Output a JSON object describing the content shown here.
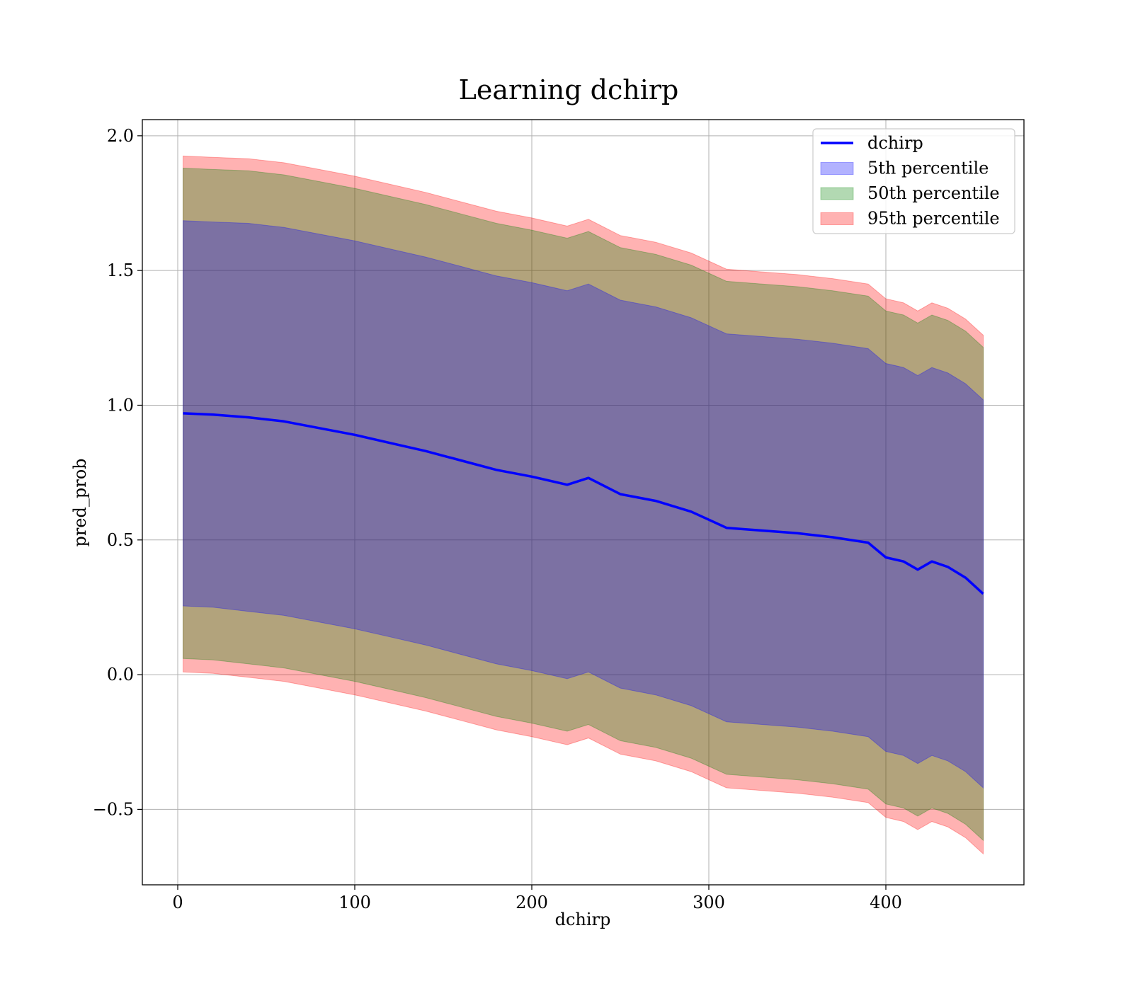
{
  "chart_data": {
    "type": "area",
    "title": "Learning dchirp",
    "xlabel": "dchirp",
    "ylabel": "pred_prob",
    "xlim": [
      -20,
      478
    ],
    "ylim": [
      -0.78,
      2.06
    ],
    "x_ticks": [
      0,
      100,
      200,
      300,
      400
    ],
    "y_ticks": [
      -0.5,
      0.0,
      0.5,
      1.0,
      1.5,
      2.0
    ],
    "x_tick_labels": [
      "0",
      "100",
      "200",
      "300",
      "400"
    ],
    "y_tick_labels": [
      "−0.5",
      "0.0",
      "0.5",
      "1.0",
      "1.5",
      "2.0"
    ],
    "grid": true,
    "legend_position": "top-right",
    "x": [
      3,
      20,
      40,
      60,
      80,
      100,
      120,
      140,
      160,
      180,
      200,
      220,
      232,
      250,
      270,
      290,
      300,
      310,
      330,
      350,
      370,
      390,
      400,
      410,
      418,
      426,
      435,
      445,
      455
    ],
    "series": [
      {
        "name": "dchirp",
        "kind": "line",
        "color": "#0000ff",
        "values": [
          0.97,
          0.965,
          0.955,
          0.94,
          0.915,
          0.89,
          0.86,
          0.83,
          0.795,
          0.76,
          0.735,
          0.705,
          0.73,
          0.67,
          0.645,
          0.605,
          0.575,
          0.545,
          0.535,
          0.525,
          0.51,
          0.49,
          0.435,
          0.42,
          0.39,
          0.42,
          0.4,
          0.36,
          0.3
        ]
      },
      {
        "name": "5th percentile",
        "kind": "band",
        "color": "#0000ff",
        "lower": [
          0.255,
          0.25,
          0.235,
          0.22,
          0.195,
          0.17,
          0.14,
          0.11,
          0.075,
          0.04,
          0.015,
          -0.015,
          0.01,
          -0.05,
          -0.075,
          -0.115,
          -0.145,
          -0.175,
          -0.185,
          -0.195,
          -0.21,
          -0.23,
          -0.285,
          -0.3,
          -0.33,
          -0.3,
          -0.32,
          -0.36,
          -0.42
        ],
        "upper": [
          1.685,
          1.68,
          1.675,
          1.66,
          1.635,
          1.61,
          1.58,
          1.55,
          1.515,
          1.48,
          1.455,
          1.425,
          1.45,
          1.39,
          1.365,
          1.325,
          1.295,
          1.265,
          1.255,
          1.245,
          1.23,
          1.21,
          1.155,
          1.14,
          1.11,
          1.14,
          1.12,
          1.08,
          1.02
        ]
      },
      {
        "name": "50th percentile",
        "kind": "band",
        "color": "#008000",
        "lower": [
          0.06,
          0.055,
          0.04,
          0.025,
          0.0,
          -0.025,
          -0.055,
          -0.085,
          -0.12,
          -0.155,
          -0.18,
          -0.21,
          -0.185,
          -0.245,
          -0.27,
          -0.31,
          -0.34,
          -0.37,
          -0.38,
          -0.39,
          -0.405,
          -0.425,
          -0.48,
          -0.495,
          -0.525,
          -0.495,
          -0.515,
          -0.555,
          -0.615
        ],
        "upper": [
          1.88,
          1.875,
          1.87,
          1.855,
          1.83,
          1.805,
          1.775,
          1.745,
          1.71,
          1.675,
          1.65,
          1.62,
          1.645,
          1.585,
          1.56,
          1.52,
          1.49,
          1.46,
          1.45,
          1.44,
          1.425,
          1.405,
          1.35,
          1.335,
          1.305,
          1.335,
          1.315,
          1.275,
          1.215
        ]
      },
      {
        "name": "95th percentile",
        "kind": "band",
        "color": "#ff0000",
        "lower": [
          0.01,
          0.005,
          -0.01,
          -0.025,
          -0.05,
          -0.075,
          -0.105,
          -0.135,
          -0.17,
          -0.205,
          -0.23,
          -0.26,
          -0.235,
          -0.295,
          -0.32,
          -0.36,
          -0.39,
          -0.42,
          -0.43,
          -0.44,
          -0.455,
          -0.475,
          -0.53,
          -0.545,
          -0.575,
          -0.545,
          -0.565,
          -0.605,
          -0.665
        ],
        "upper": [
          1.925,
          1.92,
          1.915,
          1.9,
          1.875,
          1.85,
          1.82,
          1.79,
          1.755,
          1.72,
          1.695,
          1.665,
          1.69,
          1.63,
          1.605,
          1.565,
          1.535,
          1.505,
          1.495,
          1.485,
          1.47,
          1.45,
          1.395,
          1.38,
          1.35,
          1.38,
          1.36,
          1.32,
          1.26
        ]
      }
    ]
  }
}
